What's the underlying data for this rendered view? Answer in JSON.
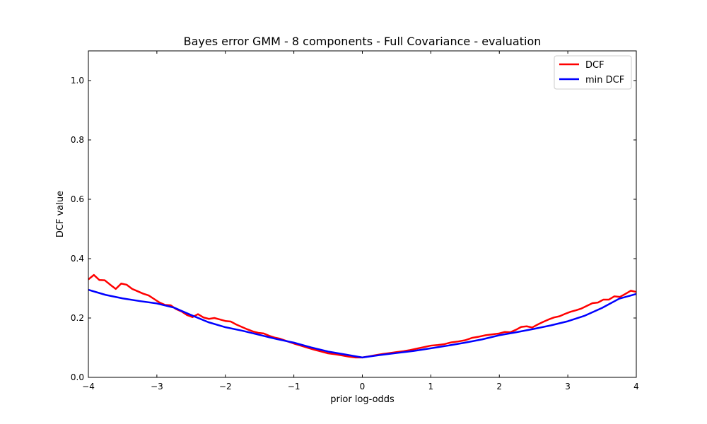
{
  "chart_data": {
    "type": "line",
    "title": "Bayes error GMM - 8 components - Full Covariance - evaluation",
    "xlabel": "prior log-odds",
    "ylabel": "DCF value",
    "xlim": [
      -4,
      4
    ],
    "ylim": [
      0,
      1.1
    ],
    "xticks": [
      -4,
      -3,
      -2,
      -1,
      0,
      1,
      2,
      3,
      4
    ],
    "xtick_labels": [
      "−4",
      "−3",
      "−2",
      "−1",
      "0",
      "1",
      "2",
      "3",
      "4"
    ],
    "yticks": [
      0.0,
      0.2,
      0.4,
      0.6,
      0.8,
      1.0
    ],
    "ytick_labels": [
      "0.0",
      "0.2",
      "0.4",
      "0.6",
      "0.8",
      "1.0"
    ],
    "grid": false,
    "legend_position": "top-right",
    "series": [
      {
        "name": "DCF",
        "color": "#ff0000",
        "x": [
          -4.0,
          -3.92,
          -3.84,
          -3.76,
          -3.68,
          -3.6,
          -3.52,
          -3.44,
          -3.36,
          -3.28,
          -3.2,
          -3.12,
          -3.04,
          -2.96,
          -2.88,
          -2.8,
          -2.72,
          -2.64,
          -2.56,
          -2.48,
          -2.4,
          -2.32,
          -2.24,
          -2.16,
          -2.08,
          -2.0,
          -1.92,
          -1.84,
          -1.76,
          -1.68,
          -1.6,
          -1.52,
          -1.44,
          -1.36,
          -1.28,
          -1.2,
          -1.1,
          -1.0,
          -0.9,
          -0.8,
          -0.7,
          -0.6,
          -0.5,
          -0.4,
          -0.3,
          -0.2,
          -0.1,
          0.0,
          0.1,
          0.2,
          0.3,
          0.4,
          0.5,
          0.6,
          0.7,
          0.8,
          0.9,
          1.0,
          1.1,
          1.2,
          1.3,
          1.4,
          1.5,
          1.6,
          1.7,
          1.8,
          1.9,
          2.0,
          2.08,
          2.16,
          2.24,
          2.32,
          2.4,
          2.48,
          2.56,
          2.64,
          2.72,
          2.8,
          2.88,
          2.96,
          3.04,
          3.12,
          3.2,
          3.28,
          3.36,
          3.44,
          3.52,
          3.6,
          3.68,
          3.76,
          3.84,
          3.92,
          4.0
        ],
        "y": [
          0.33,
          0.345,
          0.328,
          0.327,
          0.312,
          0.298,
          0.316,
          0.312,
          0.298,
          0.29,
          0.282,
          0.276,
          0.264,
          0.252,
          0.244,
          0.243,
          0.23,
          0.222,
          0.21,
          0.203,
          0.213,
          0.202,
          0.197,
          0.2,
          0.195,
          0.19,
          0.188,
          0.178,
          0.17,
          0.162,
          0.155,
          0.15,
          0.148,
          0.14,
          0.134,
          0.13,
          0.122,
          0.114,
          0.107,
          0.1,
          0.093,
          0.087,
          0.081,
          0.078,
          0.074,
          0.07,
          0.067,
          0.067,
          0.071,
          0.075,
          0.079,
          0.082,
          0.085,
          0.088,
          0.092,
          0.097,
          0.102,
          0.107,
          0.109,
          0.112,
          0.118,
          0.121,
          0.125,
          0.133,
          0.137,
          0.142,
          0.145,
          0.148,
          0.153,
          0.152,
          0.16,
          0.17,
          0.172,
          0.168,
          0.178,
          0.187,
          0.195,
          0.202,
          0.206,
          0.214,
          0.221,
          0.226,
          0.232,
          0.241,
          0.25,
          0.252,
          0.262,
          0.262,
          0.273,
          0.271,
          0.281,
          0.292,
          0.288
        ]
      },
      {
        "name": "min DCF",
        "color": "#0000ff",
        "x": [
          -4.0,
          -3.75,
          -3.5,
          -3.25,
          -3.0,
          -2.75,
          -2.5,
          -2.25,
          -2.0,
          -1.75,
          -1.5,
          -1.25,
          -1.0,
          -0.75,
          -0.5,
          -0.25,
          0.0,
          0.25,
          0.5,
          0.75,
          1.0,
          1.25,
          1.5,
          1.75,
          2.0,
          2.25,
          2.5,
          2.75,
          3.0,
          3.25,
          3.5,
          3.75,
          4.0
        ],
        "y": [
          0.295,
          0.278,
          0.266,
          0.257,
          0.249,
          0.235,
          0.21,
          0.186,
          0.169,
          0.157,
          0.143,
          0.129,
          0.117,
          0.101,
          0.087,
          0.077,
          0.067,
          0.075,
          0.082,
          0.089,
          0.098,
          0.107,
          0.117,
          0.128,
          0.142,
          0.152,
          0.163,
          0.175,
          0.189,
          0.208,
          0.234,
          0.265,
          0.281
        ]
      }
    ]
  }
}
